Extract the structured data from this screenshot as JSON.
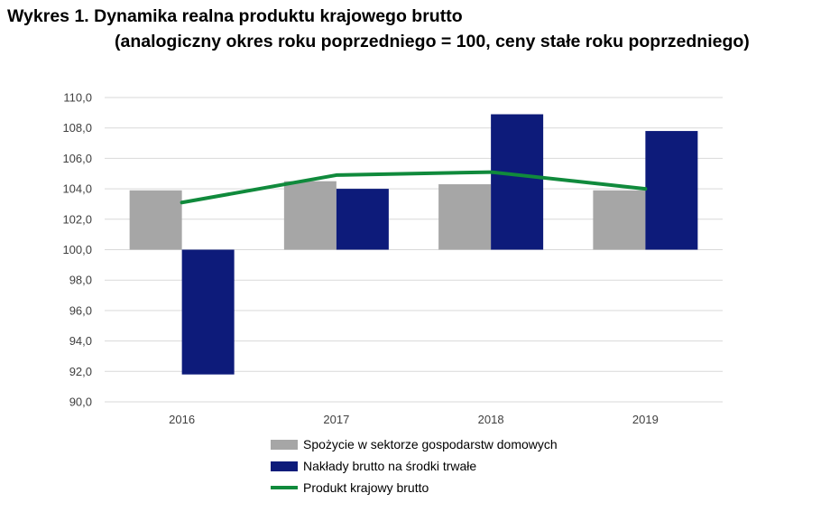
{
  "title_line1": "Wykres 1. Dynamika realna produktu krajowego brutto",
  "title_line2": "(analogiczny okres roku poprzedniego = 100, ceny stałe roku poprzedniego)",
  "colors": {
    "consumption": "#a6a6a6",
    "investment": "#0d1b7a",
    "gdp": "#108a3c",
    "grid": "#d9d9d9"
  },
  "chart_data": {
    "type": "bar",
    "title": "Dynamika realna produktu krajowego brutto",
    "categories": [
      "2016",
      "2017",
      "2018",
      "2019"
    ],
    "ylim": [
      90,
      110
    ],
    "ytick_step": 2,
    "y_ticks": [
      "110,0",
      "108,0",
      "106,0",
      "104,0",
      "102,0",
      "100,0",
      "98,0",
      "96,0",
      "94,0",
      "92,0",
      "90,0"
    ],
    "baseline": 100,
    "series": [
      {
        "name": "Spożycie w sektorze gospodarstw domowych",
        "type": "bar",
        "values": [
          103.9,
          104.5,
          104.3,
          103.9
        ]
      },
      {
        "name": "Nakłady brutto na środki trwałe",
        "type": "bar",
        "values": [
          91.8,
          104.0,
          108.9,
          107.8
        ]
      },
      {
        "name": "Produkt krajowy brutto",
        "type": "line",
        "values": [
          103.1,
          104.9,
          105.1,
          104.0
        ]
      }
    ],
    "legend_position": "bottom"
  }
}
